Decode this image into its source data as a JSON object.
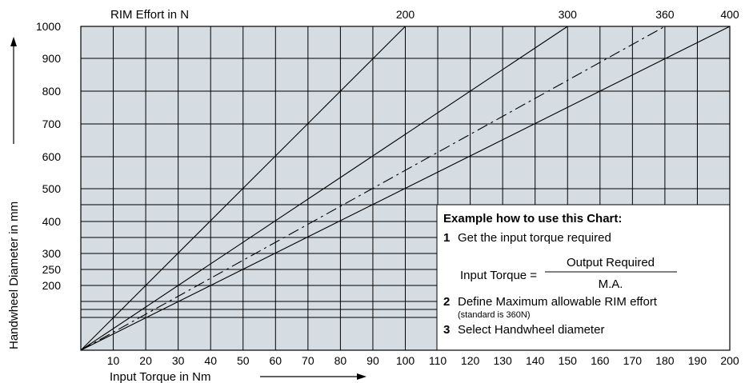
{
  "chart_data": {
    "type": "line",
    "top_label": "RIM Effort in N",
    "xlabel": "Input Torque in Nm",
    "ylabel": "Handwheel Diameter in mm",
    "x_ticks": [
      "10",
      "20",
      "30",
      "40",
      "50",
      "60",
      "70",
      "80",
      "90",
      "100",
      "110",
      "120",
      "130",
      "140",
      "150",
      "160",
      "170",
      "180",
      "190",
      "200"
    ],
    "y_ticks": [
      {
        "label": "1000",
        "value": 1000
      },
      {
        "label": "900",
        "value": 900
      },
      {
        "label": "800",
        "value": 800
      },
      {
        "label": "700",
        "value": 700
      },
      {
        "label": "600",
        "value": 600
      },
      {
        "label": "500",
        "value": 500
      },
      {
        "label": "400",
        "value": 400
      },
      {
        "label": "300",
        "value": 300
      },
      {
        "label": "250",
        "value": 250
      },
      {
        "label": "200",
        "value": 200
      }
    ],
    "xlim": [
      0,
      200
    ],
    "ylim": [
      0,
      1000
    ],
    "grid": true,
    "extra_gridlines_y": [
      150,
      125,
      100
    ],
    "series": [
      {
        "name": "200",
        "dashed": false,
        "x": [
          0,
          100
        ],
        "y": [
          0,
          1000
        ]
      },
      {
        "name": "300",
        "dashed": false,
        "x": [
          0,
          150
        ],
        "y": [
          0,
          1000
        ]
      },
      {
        "name": "360",
        "dashed": true,
        "x": [
          0,
          180
        ],
        "y": [
          0,
          1000
        ]
      },
      {
        "name": "400",
        "dashed": false,
        "x": [
          0,
          200
        ],
        "y": [
          0,
          1000
        ]
      }
    ],
    "annotation": {
      "heading": "Example how to use this Chart:",
      "step1_num": "1",
      "step1": "Get the input torque required",
      "formula_left": "Input Torque =",
      "formula_num": "Output Required",
      "formula_den": "M.A.",
      "step2_num": "2",
      "step2": "Define Maximum allowable RIM effort",
      "step2_note": "(standard is 360N)",
      "step3_num": "3",
      "step3": "Select Handwheel diameter"
    },
    "colors": {
      "plot_bg": "#d5dde2",
      "box_bg": "#ffffff",
      "line": "#000000"
    }
  }
}
